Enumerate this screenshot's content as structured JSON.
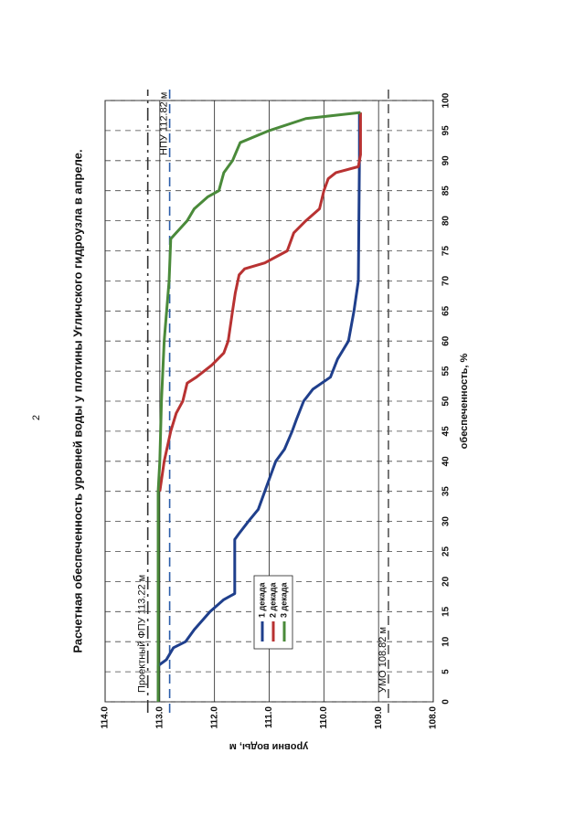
{
  "page_number": "2",
  "chart_data": {
    "type": "line",
    "title": "Расчетная обеспеченность уровней воды у плотины Угличского гидроузла в апреле.",
    "x_label": "обеспеченность, %",
    "y_label": "уровни воды, м",
    "xlim": [
      0,
      100
    ],
    "xticks": [
      0,
      5,
      10,
      15,
      20,
      25,
      30,
      35,
      40,
      45,
      50,
      55,
      60,
      65,
      70,
      75,
      80,
      85,
      90,
      95,
      100
    ],
    "ylim": [
      108,
      114
    ],
    "yticks": [
      {
        "value": 108,
        "label": "108.0"
      },
      {
        "value": 109,
        "label": "109.0"
      },
      {
        "value": 110,
        "label": "110.0"
      },
      {
        "value": 111,
        "label": "111.0"
      },
      {
        "value": 112,
        "label": "112.0"
      },
      {
        "value": 113,
        "label": "113.0"
      },
      {
        "value": 114,
        "label": "114.0"
      }
    ],
    "grid": true,
    "reference_lines": [
      {
        "label": "Проектный ФПУ 113.22 м",
        "value": 113.22,
        "color": "#333333",
        "style": "dashdot"
      },
      {
        "label": "НПУ 112.82 м",
        "value": 112.82,
        "color": "#2a5caa",
        "style": "dashed"
      },
      {
        "label": "УМО 108.82 м",
        "value": 108.82,
        "color": "#555555",
        "style": "dashed"
      }
    ],
    "series": [
      {
        "name": "1 декада",
        "color": "#1f3f8c",
        "x": [
          0,
          6,
          7,
          9,
          10,
          12,
          15,
          17,
          18,
          27,
          28,
          30,
          32,
          35,
          37,
          40,
          42,
          45,
          47,
          50,
          52,
          54,
          57,
          60,
          65,
          70,
          90,
          98
        ],
        "values": [
          113.03,
          113.03,
          112.88,
          112.75,
          112.53,
          112.37,
          112.08,
          111.83,
          111.63,
          111.63,
          111.55,
          111.38,
          111.2,
          111.08,
          111.0,
          110.88,
          110.72,
          110.58,
          110.5,
          110.37,
          110.2,
          109.88,
          109.75,
          109.55,
          109.45,
          109.37,
          109.35,
          109.35
        ]
      },
      {
        "name": "2 декада",
        "color": "#b83232",
        "x": [
          35,
          40,
          45,
          48,
          50,
          53,
          54,
          56,
          58,
          60,
          65,
          68,
          71,
          72,
          73,
          75,
          78,
          80,
          82,
          85,
          87,
          88,
          89,
          91,
          98
        ],
        "values": [
          113.0,
          112.92,
          112.8,
          112.7,
          112.58,
          112.5,
          112.33,
          112.05,
          111.83,
          111.75,
          111.67,
          111.62,
          111.55,
          111.45,
          111.08,
          110.67,
          110.55,
          110.33,
          110.08,
          110.0,
          109.92,
          109.78,
          109.37,
          109.33,
          109.33
        ]
      },
      {
        "name": "3 декада",
        "color": "#4a8a3a",
        "x": [
          0,
          35,
          40,
          50,
          60,
          70,
          77,
          78,
          80,
          82,
          84,
          85,
          88,
          90,
          93,
          95,
          97,
          98
        ],
        "values": [
          113.03,
          113.03,
          113.0,
          112.97,
          112.92,
          112.83,
          112.8,
          112.7,
          112.5,
          112.37,
          112.12,
          111.92,
          111.83,
          111.67,
          111.53,
          111.0,
          110.33,
          109.33
        ]
      }
    ]
  }
}
